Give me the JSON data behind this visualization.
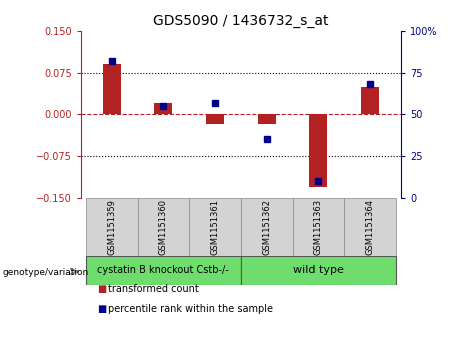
{
  "title": "GDS5090 / 1436732_s_at",
  "samples": [
    "GSM1151359",
    "GSM1151360",
    "GSM1151361",
    "GSM1151362",
    "GSM1151363",
    "GSM1151364"
  ],
  "red_values": [
    0.09,
    0.02,
    -0.018,
    -0.018,
    -0.13,
    0.05
  ],
  "blue_values": [
    82,
    55,
    57,
    35,
    10,
    68
  ],
  "ylim_left": [
    -0.15,
    0.15
  ],
  "ylim_right": [
    0,
    100
  ],
  "yticks_left": [
    -0.15,
    -0.075,
    0,
    0.075,
    0.15
  ],
  "yticks_right": [
    0,
    25,
    50,
    75,
    100
  ],
  "hlines_dotted": [
    0.075,
    -0.075
  ],
  "hline_zero": 0,
  "group1_label": "cystatin B knockout Cstb-/-",
  "group2_label": "wild type",
  "group1_indices": [
    0,
    1,
    2
  ],
  "group2_indices": [
    3,
    4,
    5
  ],
  "group_color": "#6edd6e",
  "sample_box_color": "#D3D3D3",
  "bar_color": "#B22222",
  "dot_color": "#00008B",
  "legend1": "transformed count",
  "legend2": "percentile rank within the sample",
  "title_fontsize": 10,
  "tick_fontsize": 7,
  "sample_fontsize": 6,
  "group_fontsize": 7,
  "legend_fontsize": 7,
  "bar_width": 0.35
}
